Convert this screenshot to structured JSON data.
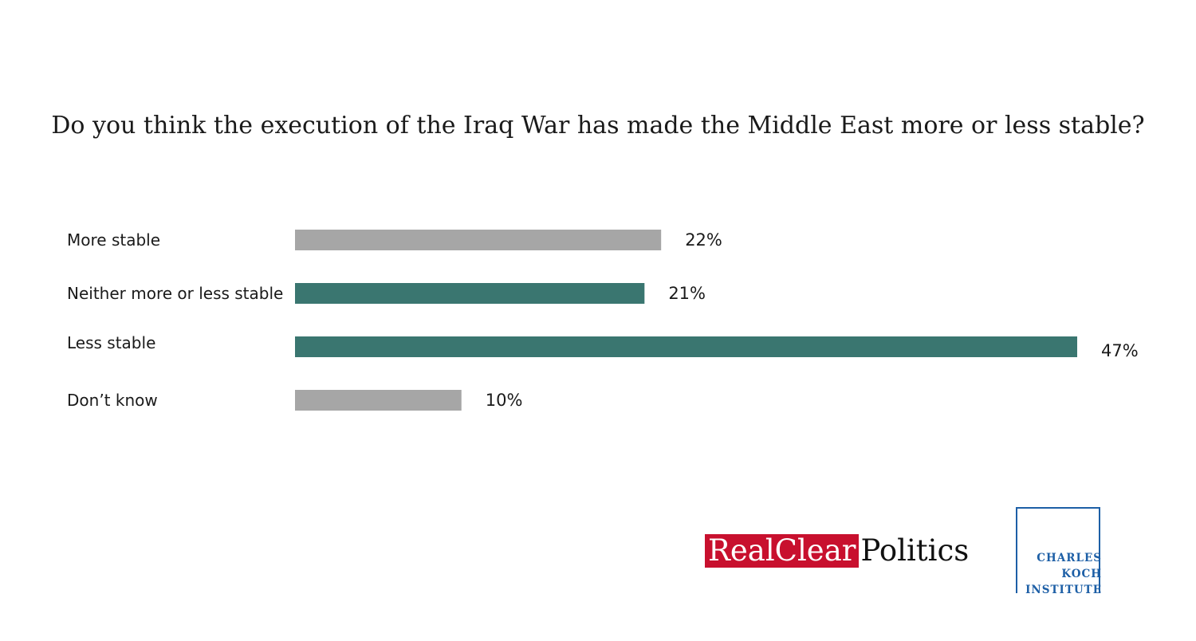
{
  "title": "Do you think the execution of the Iraq War has made the Middle East more or less stable?",
  "chart_data": {
    "type": "bar",
    "orientation": "horizontal",
    "title": "Do you think the execution of the Iraq War has made the Middle East more or less stable?",
    "categories": [
      "More stable",
      "Neither more or less stable",
      "Less stable",
      "Don’t know"
    ],
    "values": [
      22,
      21,
      47,
      10
    ],
    "value_labels": [
      "22%",
      "21%",
      "47%",
      "10%"
    ],
    "colors": [
      "#a6a6a6",
      "#3a7670",
      "#3a7670",
      "#a6a6a6"
    ],
    "unit": "%",
    "xlim": [
      0,
      47
    ],
    "xlabel": "",
    "ylabel": "",
    "grid": false
  },
  "logos": {
    "rcp_red": "RealClear",
    "rcp_black": "Politics",
    "cki_line1": "CHARLES",
    "cki_line2": "KOCH",
    "cki_line3": "INSTITUTE"
  },
  "colors": {
    "rcp_red": "#c8102e",
    "cki_blue": "#1d5fa6"
  }
}
